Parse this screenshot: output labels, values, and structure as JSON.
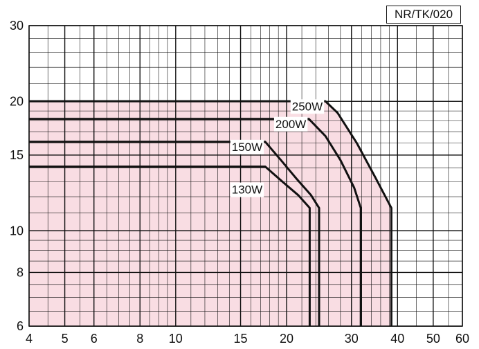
{
  "chart_data": {
    "type": "line",
    "title": "",
    "xlabel": "",
    "ylabel": "",
    "x_scale": "log",
    "y_scale": "log",
    "xlim": [
      4,
      60
    ],
    "ylim": [
      6,
      30
    ],
    "x_ticks": [
      4,
      5,
      6,
      8,
      10,
      15,
      20,
      30,
      40,
      50,
      60
    ],
    "y_ticks": [
      6,
      8,
      10,
      15,
      20,
      30
    ],
    "grid": true,
    "legend": "none",
    "shaded_region_color": "#f9dde3",
    "line_color": "#111111",
    "reference_label": "NR/TK/020",
    "series": [
      {
        "name": "250W",
        "points": [
          [
            4,
            20
          ],
          [
            25.5,
            20
          ],
          [
            27.5,
            18.8
          ],
          [
            31,
            16
          ],
          [
            35,
            13.2
          ],
          [
            38.5,
            11.3
          ],
          [
            38.5,
            6
          ]
        ]
      },
      {
        "name": "200W",
        "points": [
          [
            4,
            18.2
          ],
          [
            23,
            18.2
          ],
          [
            25.5,
            16.6
          ],
          [
            28,
            14.6
          ],
          [
            30.5,
            12.6
          ],
          [
            31.8,
            11.3
          ],
          [
            31.8,
            6
          ]
        ]
      },
      {
        "name": "150W",
        "points": [
          [
            4,
            16.1
          ],
          [
            17.5,
            16.1
          ],
          [
            19.3,
            14.6
          ],
          [
            21.3,
            13.2
          ],
          [
            23.3,
            12.1
          ],
          [
            24.5,
            11.3
          ],
          [
            24.5,
            6
          ]
        ]
      },
      {
        "name": "130W",
        "points": [
          [
            4,
            14.1
          ],
          [
            17.5,
            14.1
          ],
          [
            19.5,
            13
          ],
          [
            21.5,
            12.1
          ],
          [
            23.1,
            11.3
          ],
          [
            23.1,
            6
          ]
        ]
      }
    ]
  }
}
